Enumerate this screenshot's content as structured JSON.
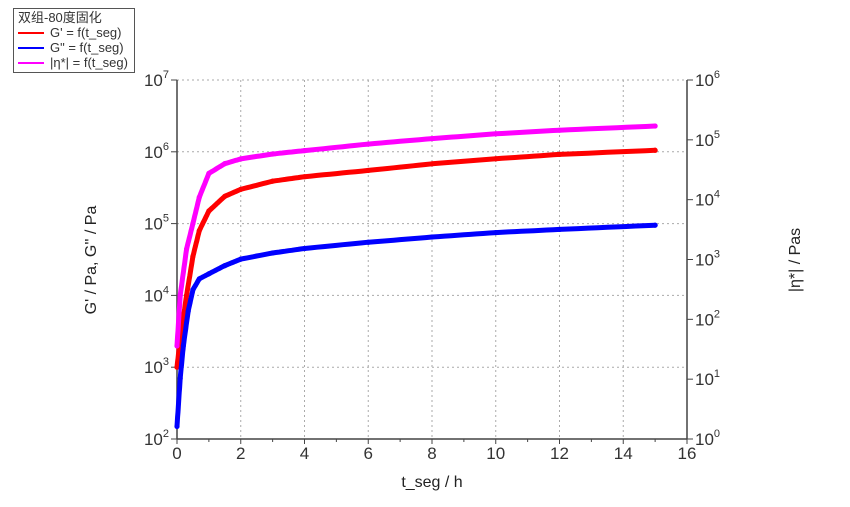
{
  "chart_data": {
    "type": "line",
    "legend": {
      "title": "双组-80度固化",
      "placement": "top-left"
    },
    "xlabel": "t_seg / h",
    "ylabel": "G' / Pa, G'' / Pa",
    "y2label": "|η*| / Pas",
    "xlim": [
      0,
      16
    ],
    "xticks": [
      "0",
      "2",
      "4",
      "6",
      "8",
      "10",
      "12",
      "14",
      "16"
    ],
    "ylim": [
      100,
      10000000
    ],
    "yscale": "log",
    "yticks": [
      {
        "base": "10",
        "exp": "2"
      },
      {
        "base": "10",
        "exp": "3"
      },
      {
        "base": "10",
        "exp": "4"
      },
      {
        "base": "10",
        "exp": "5"
      },
      {
        "base": "10",
        "exp": "6"
      },
      {
        "base": "10",
        "exp": "7"
      }
    ],
    "y2lim": [
      1,
      1000000
    ],
    "y2scale": "log",
    "y2ticks": [
      {
        "base": "10",
        "exp": "0"
      },
      {
        "base": "10",
        "exp": "1"
      },
      {
        "base": "10",
        "exp": "2"
      },
      {
        "base": "10",
        "exp": "3"
      },
      {
        "base": "10",
        "exp": "4"
      },
      {
        "base": "10",
        "exp": "5"
      },
      {
        "base": "10",
        "exp": "6"
      }
    ],
    "grid": true,
    "series": [
      {
        "name": "G' = f(t_seg)",
        "color": "#ff0000",
        "axis": "left",
        "x": [
          0,
          0.1,
          0.3,
          0.5,
          0.7,
          1,
          1.5,
          2,
          3,
          4,
          6,
          8,
          10,
          12,
          15
        ],
        "y": [
          1000,
          2500,
          10000,
          35000,
          80000,
          150000,
          240000,
          300000,
          390000,
          450000,
          550000,
          680000,
          800000,
          920000,
          1050000
        ]
      },
      {
        "name": "G\" = f(t_seg)",
        "color": "#0000ff",
        "axis": "left",
        "x": [
          0,
          0.1,
          0.2,
          0.35,
          0.5,
          0.7,
          1,
          1.5,
          2,
          3,
          4,
          6,
          8,
          10,
          12,
          15
        ],
        "y": [
          150,
          700,
          2000,
          6000,
          12000,
          17000,
          20000,
          26000,
          32000,
          39000,
          45000,
          55000,
          65000,
          75000,
          83000,
          95000
        ]
      },
      {
        "name": "|η*| = f(t_seg)",
        "color": "#ff00ff",
        "axis": "right",
        "x": [
          0,
          0.1,
          0.3,
          0.5,
          0.7,
          1,
          1.5,
          2,
          3,
          4,
          6,
          8,
          10,
          12,
          15
        ],
        "y": [
          36,
          250,
          1500,
          4000,
          11000,
          27500,
          40000,
          48000,
          58000,
          66000,
          85000,
          105000,
          126000,
          145000,
          170000
        ]
      }
    ]
  }
}
